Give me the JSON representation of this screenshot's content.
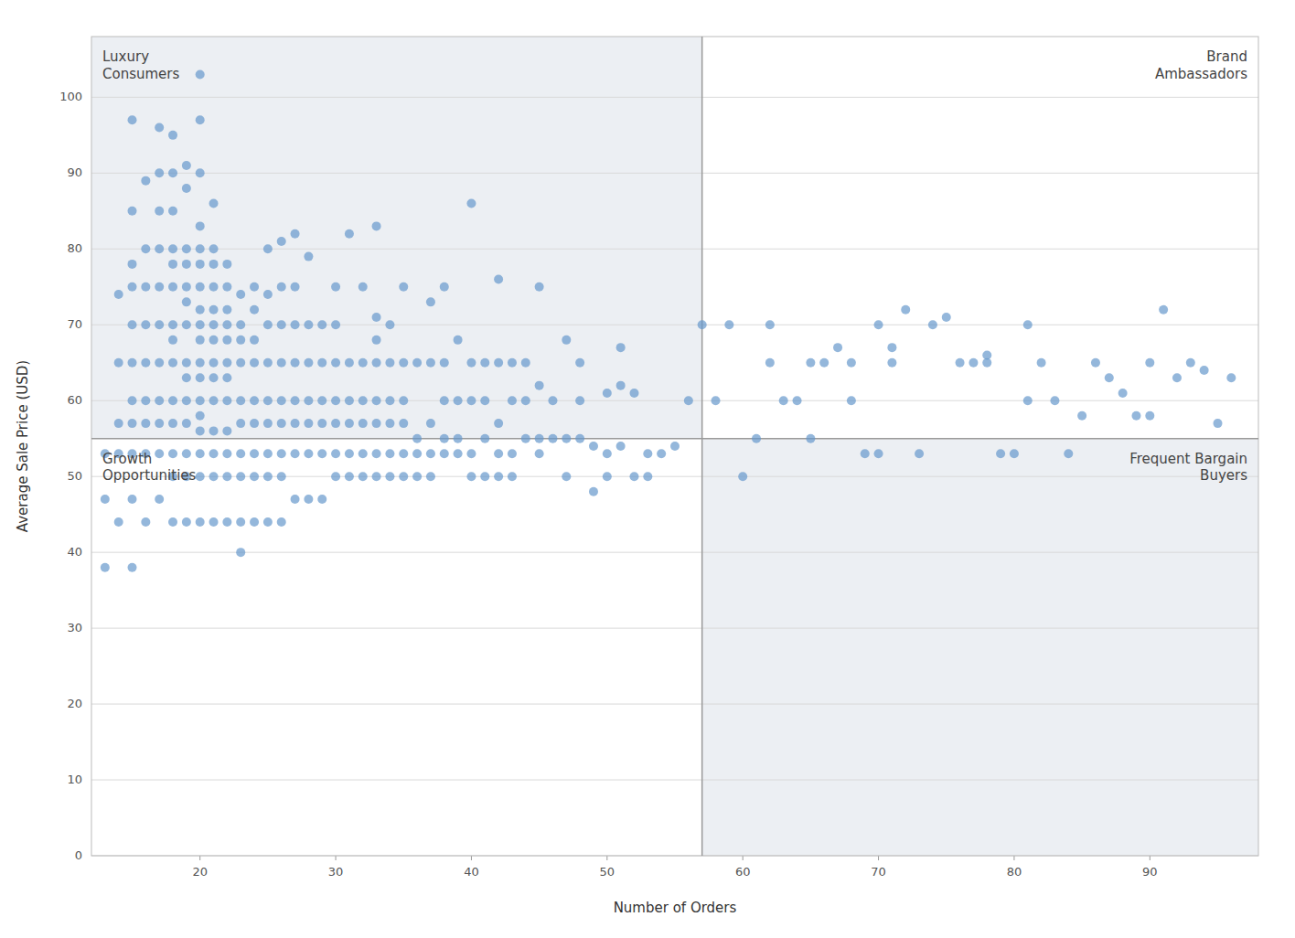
{
  "chart_data": {
    "type": "scatter",
    "x_label": "Number of Orders",
    "y_label": "Average Sale Price (USD)",
    "xlim": [
      12,
      98
    ],
    "ylim": [
      0,
      108
    ],
    "xticks": [
      20,
      30,
      40,
      50,
      60,
      70,
      80,
      90
    ],
    "yticks": [
      0,
      10,
      20,
      30,
      40,
      50,
      60,
      70,
      80,
      90,
      100
    ],
    "grid": true,
    "color": "#6699cc",
    "quadrant_x": 57,
    "quadrant_y": 55,
    "quadrant_labels": {
      "top_left": "Luxury\nConsumers",
      "top_right": "Brand\nAmbassadors",
      "bottom_left": "Growth\nOpportunities",
      "bottom_right": "Frequent Bargain\nBuyers"
    },
    "x": [
      13,
      13,
      13,
      14,
      14,
      14,
      14,
      14,
      15,
      15,
      15,
      15,
      15,
      15,
      15,
      15,
      15,
      15,
      15,
      16,
      16,
      16,
      16,
      16,
      16,
      16,
      16,
      16,
      17,
      17,
      17,
      17,
      17,
      17,
      17,
      17,
      17,
      17,
      17,
      18,
      18,
      18,
      18,
      18,
      18,
      18,
      18,
      18,
      18,
      18,
      18,
      18,
      18,
      19,
      19,
      19,
      19,
      19,
      19,
      19,
      19,
      19,
      19,
      19,
      19,
      19,
      19,
      20,
      20,
      20,
      20,
      20,
      20,
      20,
      20,
      20,
      20,
      20,
      20,
      20,
      20,
      20,
      20,
      20,
      20,
      21,
      21,
      21,
      21,
      21,
      21,
      21,
      21,
      21,
      21,
      21,
      21,
      21,
      21,
      22,
      22,
      22,
      22,
      22,
      22,
      22,
      22,
      22,
      22,
      22,
      22,
      23,
      23,
      23,
      23,
      23,
      23,
      23,
      23,
      23,
      23,
      24,
      24,
      24,
      24,
      24,
      24,
      24,
      24,
      24,
      25,
      25,
      25,
      25,
      25,
      25,
      25,
      25,
      25,
      26,
      26,
      26,
      26,
      26,
      26,
      26,
      26,
      26,
      27,
      27,
      27,
      27,
      27,
      27,
      27,
      27,
      28,
      28,
      28,
      28,
      28,
      28,
      28,
      29,
      29,
      29,
      29,
      29,
      29,
      30,
      30,
      30,
      30,
      30,
      30,
      30,
      31,
      31,
      31,
      31,
      31,
      31,
      32,
      32,
      32,
      32,
      32,
      32,
      33,
      33,
      33,
      33,
      33,
      33,
      33,
      33,
      34,
      34,
      34,
      34,
      34,
      34,
      35,
      35,
      35,
      35,
      35,
      35,
      36,
      36,
      36,
      36,
      37,
      37,
      37,
      37,
      37,
      38,
      38,
      38,
      38,
      38,
      39,
      39,
      39,
      39,
      40,
      40,
      40,
      40,
      40,
      41,
      41,
      41,
      41,
      42,
      42,
      42,
      42,
      42,
      43,
      43,
      43,
      43,
      44,
      44,
      44,
      45,
      45,
      45,
      45,
      46,
      46,
      47,
      47,
      47,
      48,
      48,
      48,
      49,
      49,
      50,
      50,
      50,
      51,
      51,
      51,
      52,
      52,
      53,
      53,
      54,
      55,
      56,
      57,
      58,
      59,
      60,
      61,
      62,
      62,
      63,
      64,
      65,
      65,
      66,
      67,
      68,
      68,
      69,
      70,
      70,
      71,
      71,
      72,
      73,
      74,
      75,
      76,
      77,
      78,
      78,
      79,
      80,
      81,
      81,
      82,
      83,
      84,
      85,
      86,
      87,
      88,
      89,
      90,
      90,
      91,
      92,
      93,
      94,
      95,
      96
    ],
    "values": [
      38,
      47,
      53,
      44,
      53,
      57,
      65,
      74,
      38,
      47,
      53,
      57,
      60,
      65,
      70,
      75,
      78,
      85,
      97,
      44,
      53,
      57,
      60,
      65,
      70,
      75,
      80,
      89,
      47,
      53,
      57,
      60,
      65,
      70,
      75,
      80,
      85,
      90,
      96,
      44,
      50,
      53,
      57,
      60,
      65,
      68,
      70,
      75,
      78,
      80,
      85,
      90,
      95,
      44,
      50,
      53,
      57,
      60,
      63,
      65,
      70,
      73,
      75,
      78,
      80,
      88,
      91,
      44,
      50,
      53,
      56,
      58,
      60,
      63,
      65,
      68,
      70,
      72,
      75,
      78,
      80,
      83,
      90,
      97,
      103,
      44,
      50,
      53,
      56,
      60,
      63,
      65,
      68,
      70,
      72,
      75,
      78,
      80,
      86,
      44,
      50,
      53,
      56,
      60,
      63,
      65,
      68,
      70,
      72,
      75,
      78,
      40,
      44,
      50,
      53,
      57,
      60,
      65,
      68,
      70,
      74,
      44,
      50,
      53,
      57,
      60,
      65,
      68,
      72,
      75,
      44,
      50,
      53,
      57,
      60,
      65,
      70,
      74,
      80,
      44,
      50,
      53,
      57,
      60,
      65,
      70,
      75,
      81,
      47,
      53,
      57,
      60,
      65,
      70,
      75,
      82,
      47,
      53,
      57,
      60,
      65,
      70,
      79,
      47,
      53,
      57,
      60,
      65,
      70,
      50,
      53,
      57,
      60,
      65,
      70,
      75,
      50,
      53,
      57,
      60,
      65,
      82,
      50,
      53,
      57,
      60,
      65,
      75,
      50,
      53,
      57,
      60,
      65,
      68,
      71,
      83,
      50,
      53,
      57,
      60,
      65,
      70,
      50,
      53,
      57,
      60,
      65,
      75,
      50,
      53,
      55,
      65,
      50,
      53,
      57,
      65,
      73,
      53,
      55,
      60,
      65,
      75,
      53,
      55,
      60,
      68,
      50,
      53,
      60,
      65,
      86,
      50,
      55,
      60,
      65,
      50,
      53,
      57,
      65,
      76,
      50,
      53,
      60,
      65,
      55,
      60,
      65,
      53,
      55,
      62,
      75,
      55,
      60,
      50,
      55,
      68,
      55,
      60,
      65,
      48,
      54,
      50,
      53,
      61,
      54,
      62,
      67,
      50,
      61,
      50,
      53,
      53,
      54,
      60,
      70,
      60,
      70,
      50,
      55,
      70,
      65,
      60,
      60,
      55,
      65,
      65,
      67,
      60,
      65,
      53,
      70,
      53,
      67,
      65,
      72,
      53,
      70,
      71,
      65,
      65,
      65,
      66,
      53,
      53,
      70,
      60,
      65,
      60,
      53,
      58,
      65,
      63,
      61,
      58,
      58,
      65,
      72,
      63,
      65,
      64,
      57,
      63
    ]
  }
}
